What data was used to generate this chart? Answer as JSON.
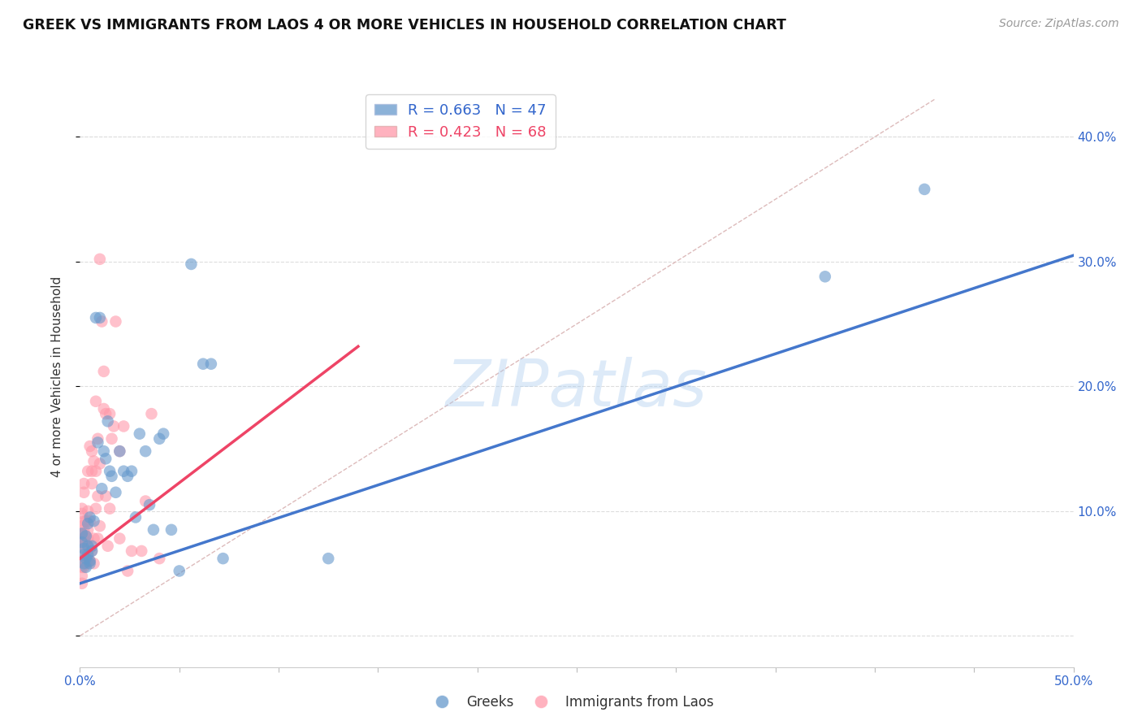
{
  "title": "GREEK VS IMMIGRANTS FROM LAOS 4 OR MORE VEHICLES IN HOUSEHOLD CORRELATION CHART",
  "source": "Source: ZipAtlas.com",
  "ylabel": "4 or more Vehicles in Household",
  "xlim": [
    0.0,
    0.5
  ],
  "ylim": [
    -0.025,
    0.44
  ],
  "xticks": [
    0.0,
    0.05,
    0.1,
    0.15,
    0.2,
    0.25,
    0.3,
    0.35,
    0.4,
    0.45,
    0.5
  ],
  "xtick_labels": [
    "0.0%",
    "",
    "",
    "",
    "",
    "",
    "",
    "",
    "",
    "",
    "50.0%"
  ],
  "yticks": [
    0.0,
    0.1,
    0.2,
    0.3,
    0.4
  ],
  "ytick_labels": [
    "",
    "10.0%",
    "20.0%",
    "30.0%",
    "40.0%"
  ],
  "blue_color": "#6699cc",
  "pink_color": "#ff99aa",
  "blue_R": 0.663,
  "blue_N": 47,
  "pink_R": 0.423,
  "pink_N": 68,
  "blue_scatter": [
    [
      0.001,
      0.082
    ],
    [
      0.001,
      0.075
    ],
    [
      0.002,
      0.07
    ],
    [
      0.002,
      0.065
    ],
    [
      0.002,
      0.058
    ],
    [
      0.003,
      0.055
    ],
    [
      0.003,
      0.062
    ],
    [
      0.003,
      0.08
    ],
    [
      0.004,
      0.09
    ],
    [
      0.004,
      0.065
    ],
    [
      0.004,
      0.072
    ],
    [
      0.005,
      0.06
    ],
    [
      0.005,
      0.095
    ],
    [
      0.005,
      0.058
    ],
    [
      0.006,
      0.068
    ],
    [
      0.006,
      0.072
    ],
    [
      0.007,
      0.092
    ],
    [
      0.008,
      0.255
    ],
    [
      0.009,
      0.155
    ],
    [
      0.01,
      0.255
    ],
    [
      0.011,
      0.118
    ],
    [
      0.012,
      0.148
    ],
    [
      0.013,
      0.142
    ],
    [
      0.014,
      0.172
    ],
    [
      0.015,
      0.132
    ],
    [
      0.016,
      0.128
    ],
    [
      0.018,
      0.115
    ],
    [
      0.02,
      0.148
    ],
    [
      0.022,
      0.132
    ],
    [
      0.024,
      0.128
    ],
    [
      0.026,
      0.132
    ],
    [
      0.028,
      0.095
    ],
    [
      0.03,
      0.162
    ],
    [
      0.033,
      0.148
    ],
    [
      0.035,
      0.105
    ],
    [
      0.037,
      0.085
    ],
    [
      0.04,
      0.158
    ],
    [
      0.042,
      0.162
    ],
    [
      0.046,
      0.085
    ],
    [
      0.05,
      0.052
    ],
    [
      0.056,
      0.298
    ],
    [
      0.062,
      0.218
    ],
    [
      0.066,
      0.218
    ],
    [
      0.072,
      0.062
    ],
    [
      0.125,
      0.062
    ],
    [
      0.375,
      0.288
    ],
    [
      0.425,
      0.358
    ]
  ],
  "pink_scatter": [
    [
      0.001,
      0.088
    ],
    [
      0.001,
      0.098
    ],
    [
      0.001,
      0.078
    ],
    [
      0.001,
      0.102
    ],
    [
      0.001,
      0.082
    ],
    [
      0.001,
      0.07
    ],
    [
      0.001,
      0.06
    ],
    [
      0.001,
      0.055
    ],
    [
      0.001,
      0.048
    ],
    [
      0.001,
      0.042
    ],
    [
      0.002,
      0.085
    ],
    [
      0.002,
      0.115
    ],
    [
      0.002,
      0.092
    ],
    [
      0.002,
      0.078
    ],
    [
      0.002,
      0.122
    ],
    [
      0.002,
      0.07
    ],
    [
      0.002,
      0.062
    ],
    [
      0.002,
      0.055
    ],
    [
      0.003,
      0.08
    ],
    [
      0.003,
      0.092
    ],
    [
      0.003,
      0.075
    ],
    [
      0.003,
      0.062
    ],
    [
      0.003,
      0.058
    ],
    [
      0.004,
      0.062
    ],
    [
      0.004,
      0.085
    ],
    [
      0.004,
      0.1
    ],
    [
      0.004,
      0.132
    ],
    [
      0.004,
      0.078
    ],
    [
      0.005,
      0.092
    ],
    [
      0.005,
      0.152
    ],
    [
      0.005,
      0.07
    ],
    [
      0.005,
      0.06
    ],
    [
      0.006,
      0.148
    ],
    [
      0.006,
      0.132
    ],
    [
      0.006,
      0.122
    ],
    [
      0.006,
      0.068
    ],
    [
      0.007,
      0.14
    ],
    [
      0.007,
      0.078
    ],
    [
      0.007,
      0.058
    ],
    [
      0.008,
      0.188
    ],
    [
      0.008,
      0.132
    ],
    [
      0.008,
      0.102
    ],
    [
      0.009,
      0.158
    ],
    [
      0.009,
      0.112
    ],
    [
      0.009,
      0.078
    ],
    [
      0.01,
      0.138
    ],
    [
      0.01,
      0.302
    ],
    [
      0.01,
      0.088
    ],
    [
      0.011,
      0.252
    ],
    [
      0.012,
      0.212
    ],
    [
      0.012,
      0.182
    ],
    [
      0.013,
      0.178
    ],
    [
      0.013,
      0.112
    ],
    [
      0.014,
      0.072
    ],
    [
      0.015,
      0.178
    ],
    [
      0.015,
      0.102
    ],
    [
      0.016,
      0.158
    ],
    [
      0.017,
      0.168
    ],
    [
      0.018,
      0.252
    ],
    [
      0.02,
      0.148
    ],
    [
      0.02,
      0.078
    ],
    [
      0.022,
      0.168
    ],
    [
      0.024,
      0.052
    ],
    [
      0.026,
      0.068
    ],
    [
      0.031,
      0.068
    ],
    [
      0.033,
      0.108
    ],
    [
      0.036,
      0.178
    ],
    [
      0.04,
      0.062
    ]
  ],
  "blue_line_x": [
    0.0,
    0.5
  ],
  "blue_line_y": [
    0.042,
    0.305
  ],
  "pink_line_x": [
    0.0,
    0.14
  ],
  "pink_line_y": [
    0.062,
    0.232
  ],
  "diag_line_x": [
    0.0,
    0.43
  ],
  "diag_line_y": [
    0.0,
    0.43
  ],
  "watermark": "ZIPatlas",
  "background_color": "#ffffff",
  "grid_color": "#dddddd"
}
